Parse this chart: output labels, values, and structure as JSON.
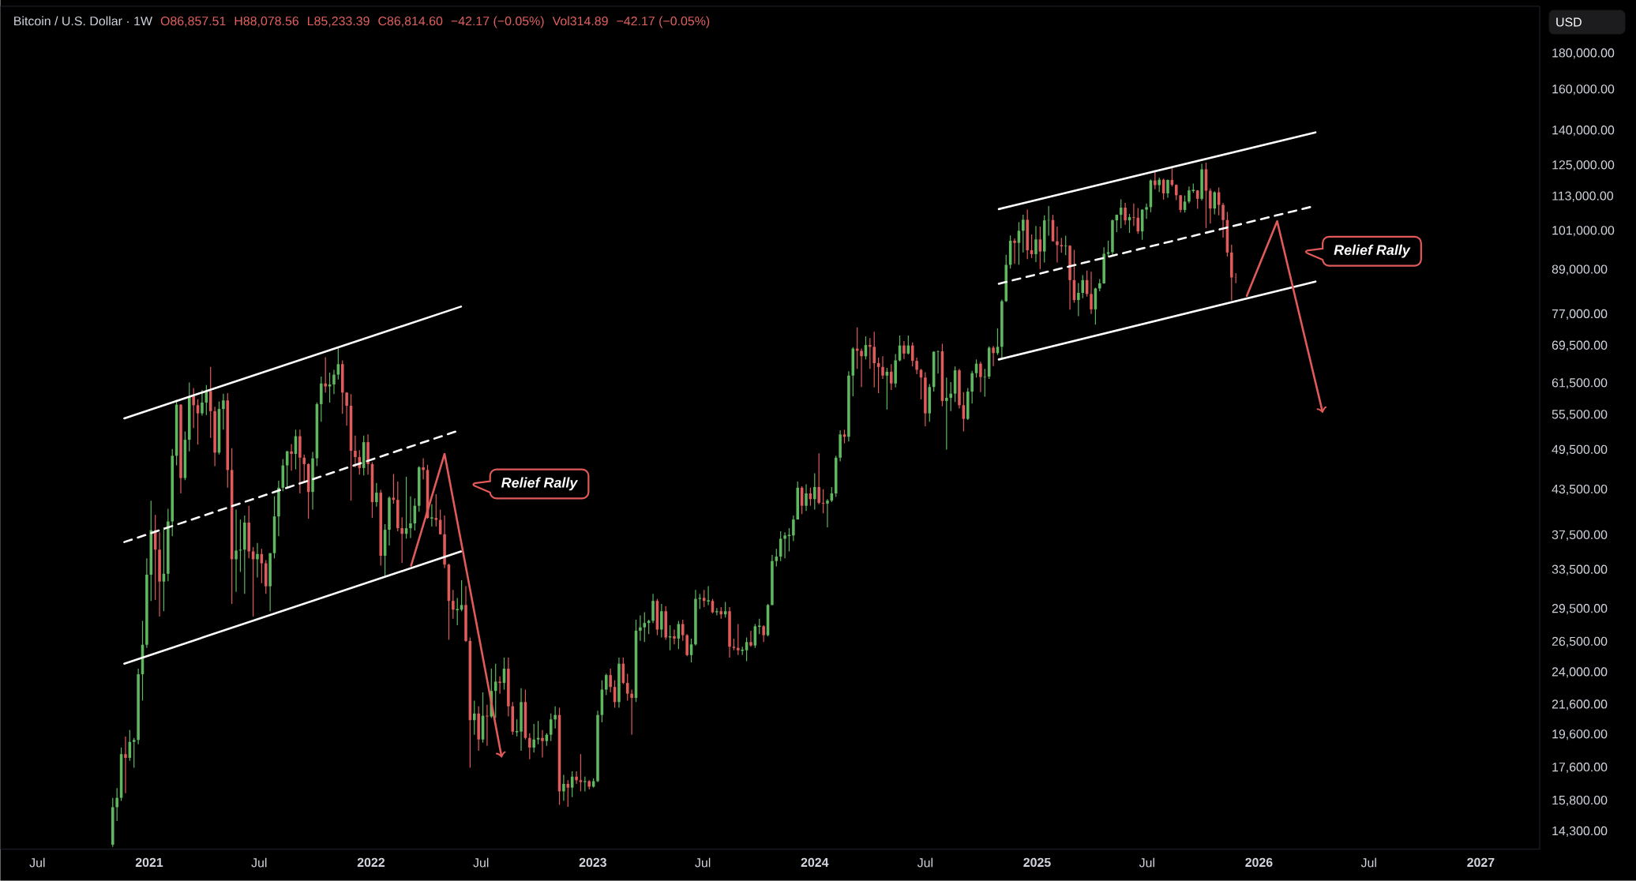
{
  "chart_data": {
    "type": "candlestick",
    "title": "Bitcoin / U.S. Dollar · 1W",
    "log": true,
    "annotations": [
      "O86,857.51",
      "H88,078.56",
      "L85,233.39",
      "C86,814.60",
      "−42.17 (−0.05%)",
      "Vol314.89",
      "−42.17 (−0.05%)",
      "Relief Rally",
      "Relief Rally",
      "USD"
    ],
    "xlim": [
      "2020-05-01",
      "2027-04-08"
    ],
    "xticks": [
      {
        "value": "2020-07-01",
        "label": "Jul"
      },
      {
        "value": "2021-01-01",
        "label": "2021"
      },
      {
        "value": "2021-07-01",
        "label": "Jul"
      },
      {
        "value": "2022-01-01",
        "label": "2022"
      },
      {
        "value": "2022-07-01",
        "label": "Jul"
      },
      {
        "value": "2023-01-01",
        "label": "2023"
      },
      {
        "value": "2023-07-01",
        "label": "Jul"
      },
      {
        "value": "2024-01-01",
        "label": "2024"
      },
      {
        "value": "2024-07-01",
        "label": "Jul"
      },
      {
        "value": "2025-01-01",
        "label": "2025"
      },
      {
        "value": "2025-07-01",
        "label": "Jul"
      },
      {
        "value": "2026-01-01",
        "label": "2026"
      },
      {
        "value": "2026-07-01",
        "label": "Jul"
      },
      {
        "value": "2027-01-01",
        "label": "2027"
      }
    ],
    "ylim": [
      13500,
      210000
    ],
    "yticks": [
      {
        "value": 14300,
        "label": "14,300.00"
      },
      {
        "value": 15800,
        "label": "15,800.00"
      },
      {
        "value": 17600,
        "label": "17,600.00"
      },
      {
        "value": 19600,
        "label": "19,600.00"
      },
      {
        "value": 21600,
        "label": "21,600.00"
      },
      {
        "value": 24000,
        "label": "24,000.00"
      },
      {
        "value": 26500,
        "label": "26,500.00"
      },
      {
        "value": 29500,
        "label": "29,500.00"
      },
      {
        "value": 33500,
        "label": "33,500.00"
      },
      {
        "value": 37500,
        "label": "37,500.00"
      },
      {
        "value": 43500,
        "label": "43,500.00"
      },
      {
        "value": 49500,
        "label": "49,500.00"
      },
      {
        "value": 55500,
        "label": "55,500.00"
      },
      {
        "value": 61500,
        "label": "61,500.00"
      },
      {
        "value": 69500,
        "label": "69,500.00"
      },
      {
        "value": 77000,
        "label": "77,000.00"
      },
      {
        "value": 89000,
        "label": "89,000.00"
      },
      {
        "value": 101000,
        "label": "101,000.00"
      },
      {
        "value": 113000,
        "label": "113,000.00"
      },
      {
        "value": 125000,
        "label": "125,000.00"
      },
      {
        "value": 140000,
        "label": "140,000.00"
      },
      {
        "value": 160000,
        "label": "160,000.00"
      },
      {
        "value": 180000,
        "label": "180,000.00"
      }
    ],
    "series": [
      {
        "type": "line",
        "color": "#ffffff",
        "line_style": "solid",
        "x": [
          "2020-11-21",
          "2022-05-29"
        ],
        "values": [
          54900,
          79000
        ]
      },
      {
        "type": "line",
        "color": "#ffffff",
        "line_style": "solid",
        "x": [
          "2020-11-21",
          "2022-05-29"
        ],
        "values": [
          24700,
          35600
        ]
      },
      {
        "type": "line",
        "color": "#ffffff",
        "line_style": "dashed",
        "x": [
          "2020-11-21",
          "2022-05-29"
        ],
        "values": [
          36700,
          52900
        ]
      },
      {
        "type": "line",
        "color": "#ffffff",
        "line_style": "solid",
        "x": [
          "2024-10-30",
          "2026-04-04"
        ],
        "values": [
          108500,
          139300
        ]
      },
      {
        "type": "line",
        "color": "#ffffff",
        "line_style": "solid",
        "x": [
          "2024-10-30",
          "2026-04-04"
        ],
        "values": [
          66500,
          85700
        ]
      },
      {
        "type": "line",
        "color": "#ffffff",
        "line_style": "dashed",
        "x": [
          "2024-10-30",
          "2026-03-28"
        ],
        "values": [
          85100,
          109300
        ]
      },
      {
        "type": "line",
        "color": "#e05a5a",
        "line_style": "solid",
        "x": [
          "2022-03-08",
          "2022-05-02",
          "2022-08-04"
        ],
        "values": [
          34000,
          48900,
          18200
        ]
      },
      {
        "type": "line",
        "color": "#e05a5a",
        "line_style": "solid",
        "x": [
          "2025-12-12",
          "2026-01-31",
          "2026-04-16"
        ],
        "values": [
          81800,
          104300,
          55900
        ]
      }
    ],
    "x": [
      "2020-11-02",
      "2020-11-09",
      "2020-11-16",
      "2020-11-23",
      "2020-11-30",
      "2020-12-07",
      "2020-12-14",
      "2020-12-21",
      "2020-12-28",
      "2021-01-04",
      "2021-01-11",
      "2021-01-18",
      "2021-01-25",
      "2021-02-01",
      "2021-02-08",
      "2021-02-15",
      "2021-02-22",
      "2021-03-01",
      "2021-03-08",
      "2021-03-15",
      "2021-03-22",
      "2021-03-29",
      "2021-04-05",
      "2021-04-12",
      "2021-04-19",
      "2021-04-26",
      "2021-05-03",
      "2021-05-10",
      "2021-05-17",
      "2021-05-24",
      "2021-05-31",
      "2021-06-07",
      "2021-06-14",
      "2021-06-21",
      "2021-06-28",
      "2021-07-05",
      "2021-07-12",
      "2021-07-19",
      "2021-07-26",
      "2021-08-02",
      "2021-08-09",
      "2021-08-16",
      "2021-08-23",
      "2021-08-30",
      "2021-09-06",
      "2021-09-13",
      "2021-09-20",
      "2021-09-27",
      "2021-10-04",
      "2021-10-11",
      "2021-10-18",
      "2021-10-25",
      "2021-11-01",
      "2021-11-08",
      "2021-11-15",
      "2021-11-22",
      "2021-11-29",
      "2021-12-06",
      "2021-12-13",
      "2021-12-20",
      "2021-12-27",
      "2022-01-03",
      "2022-01-10",
      "2022-01-17",
      "2022-01-24",
      "2022-01-31",
      "2022-02-07",
      "2022-02-14",
      "2022-02-21",
      "2022-02-28",
      "2022-03-07",
      "2022-03-14",
      "2022-03-21",
      "2022-03-28",
      "2022-04-04",
      "2022-04-11",
      "2022-04-18",
      "2022-04-25",
      "2022-05-02",
      "2022-05-09",
      "2022-05-16",
      "2022-05-23",
      "2022-05-30",
      "2022-06-06",
      "2022-06-13",
      "2022-06-20",
      "2022-06-27",
      "2022-07-04",
      "2022-07-11",
      "2022-07-18",
      "2022-07-25",
      "2022-08-01",
      "2022-08-08",
      "2022-08-15",
      "2022-08-22",
      "2022-08-29",
      "2022-09-05",
      "2022-09-12",
      "2022-09-19",
      "2022-09-26",
      "2022-10-03",
      "2022-10-10",
      "2022-10-17",
      "2022-10-24",
      "2022-10-31",
      "2022-11-07",
      "2022-11-14",
      "2022-11-21",
      "2022-11-28",
      "2022-12-05",
      "2022-12-12",
      "2022-12-19",
      "2022-12-26",
      "2023-01-02",
      "2023-01-09",
      "2023-01-16",
      "2023-01-23",
      "2023-01-30",
      "2023-02-06",
      "2023-02-13",
      "2023-02-20",
      "2023-02-27",
      "2023-03-06",
      "2023-03-13",
      "2023-03-20",
      "2023-03-27",
      "2023-04-03",
      "2023-04-10",
      "2023-04-17",
      "2023-04-24",
      "2023-05-01",
      "2023-05-08",
      "2023-05-15",
      "2023-05-22",
      "2023-05-29",
      "2023-06-05",
      "2023-06-12",
      "2023-06-19",
      "2023-06-26",
      "2023-07-03",
      "2023-07-10",
      "2023-07-17",
      "2023-07-24",
      "2023-07-31",
      "2023-08-07",
      "2023-08-14",
      "2023-08-21",
      "2023-08-28",
      "2023-09-04",
      "2023-09-11",
      "2023-09-18",
      "2023-09-25",
      "2023-10-02",
      "2023-10-09",
      "2023-10-16",
      "2023-10-23",
      "2023-10-30",
      "2023-11-06",
      "2023-11-13",
      "2023-11-20",
      "2023-11-27",
      "2023-12-04",
      "2023-12-11",
      "2023-12-18",
      "2023-12-25",
      "2024-01-01",
      "2024-01-08",
      "2024-01-15",
      "2024-01-22",
      "2024-01-29",
      "2024-02-05",
      "2024-02-12",
      "2024-02-19",
      "2024-02-26",
      "2024-03-04",
      "2024-03-11",
      "2024-03-18",
      "2024-03-25",
      "2024-04-01",
      "2024-04-08",
      "2024-04-15",
      "2024-04-22",
      "2024-04-29",
      "2024-05-06",
      "2024-05-13",
      "2024-05-20",
      "2024-05-27",
      "2024-06-03",
      "2024-06-10",
      "2024-06-17",
      "2024-06-24",
      "2024-07-01",
      "2024-07-08",
      "2024-07-15",
      "2024-07-22",
      "2024-07-29",
      "2024-08-05",
      "2024-08-12",
      "2024-08-19",
      "2024-08-26",
      "2024-09-02",
      "2024-09-09",
      "2024-09-16",
      "2024-09-23",
      "2024-09-30",
      "2024-10-07",
      "2024-10-14",
      "2024-10-21",
      "2024-10-28",
      "2024-11-04",
      "2024-11-11",
      "2024-11-18",
      "2024-11-25",
      "2024-12-02",
      "2024-12-09",
      "2024-12-16",
      "2024-12-23",
      "2024-12-30",
      "2025-01-06",
      "2025-01-13",
      "2025-01-20",
      "2025-01-27",
      "2025-02-03",
      "2025-02-10",
      "2025-02-17",
      "2025-02-24",
      "2025-03-03",
      "2025-03-10",
      "2025-03-17",
      "2025-03-24",
      "2025-03-31",
      "2025-04-07",
      "2025-04-14",
      "2025-04-21",
      "2025-04-28",
      "2025-05-05",
      "2025-05-12",
      "2025-05-19",
      "2025-05-26",
      "2025-06-02",
      "2025-06-09",
      "2025-06-16",
      "2025-06-23",
      "2025-06-30",
      "2025-07-07",
      "2025-07-14",
      "2025-07-21",
      "2025-07-28",
      "2025-08-04",
      "2025-08-11",
      "2025-08-18",
      "2025-08-25",
      "2025-09-01",
      "2025-09-08",
      "2025-09-15",
      "2025-09-22",
      "2025-09-29",
      "2025-10-06",
      "2025-10-13",
      "2025-10-20",
      "2025-10-27",
      "2025-11-03",
      "2025-11-10",
      "2025-11-17",
      "2025-11-24"
    ],
    "ohlc": [
      [
        13700,
        15960,
        13600,
        15480
      ],
      [
        15480,
        16480,
        14800,
        15960
      ],
      [
        15960,
        18800,
        15800,
        18400
      ],
      [
        18400,
        19480,
        16200,
        18180
      ],
      [
        18180,
        19900,
        18000,
        19150
      ],
      [
        19150,
        19400,
        17600,
        19270
      ],
      [
        19270,
        24300,
        19000,
        23860
      ],
      [
        23860,
        28400,
        21900,
        26270
      ],
      [
        26270,
        34800,
        26000,
        33000
      ],
      [
        33000,
        42000,
        30300,
        38150
      ],
      [
        38150,
        40100,
        30400,
        35800
      ],
      [
        35800,
        37900,
        28800,
        32270
      ],
      [
        32270,
        38500,
        29300,
        33100
      ],
      [
        33100,
        40900,
        32300,
        39250
      ],
      [
        39250,
        49700,
        37400,
        48600
      ],
      [
        48600,
        58300,
        47100,
        57400
      ],
      [
        57400,
        57500,
        43000,
        45200
      ],
      [
        45200,
        52600,
        44900,
        51200
      ],
      [
        51200,
        61700,
        49300,
        59000
      ],
      [
        59000,
        60600,
        53200,
        57300
      ],
      [
        57300,
        58400,
        50400,
        55800
      ],
      [
        55800,
        60200,
        55400,
        57800
      ],
      [
        57800,
        61200,
        55500,
        60000
      ],
      [
        60000,
        64900,
        51500,
        56200
      ],
      [
        56200,
        57000,
        47000,
        49100
      ],
      [
        49100,
        58000,
        48800,
        56600
      ],
      [
        56600,
        59500,
        52900,
        58200
      ],
      [
        58200,
        59600,
        43800,
        46400
      ],
      [
        46400,
        49800,
        30000,
        34700
      ],
      [
        34700,
        40800,
        31200,
        35700
      ],
      [
        35700,
        39500,
        33300,
        35800
      ],
      [
        35800,
        40000,
        31000,
        39100
      ],
      [
        39100,
        41300,
        34800,
        35600
      ],
      [
        35600,
        36100,
        28800,
        34700
      ],
      [
        34700,
        36600,
        32700,
        35300
      ],
      [
        35300,
        35900,
        32100,
        34250
      ],
      [
        34250,
        34600,
        31000,
        31780
      ],
      [
        31780,
        35400,
        29300,
        35400
      ],
      [
        35400,
        42600,
        34800,
        39900
      ],
      [
        39900,
        44800,
        37400,
        43800
      ],
      [
        43800,
        48100,
        43300,
        47100
      ],
      [
        47100,
        49400,
        43900,
        49300
      ],
      [
        49300,
        50500,
        46300,
        48900
      ],
      [
        48900,
        52900,
        46500,
        51800
      ],
      [
        51800,
        52900,
        43000,
        48300
      ],
      [
        48300,
        48800,
        44700,
        47300
      ],
      [
        47300,
        47400,
        39600,
        43200
      ],
      [
        43200,
        49200,
        40800,
        48200
      ],
      [
        48200,
        57800,
        47000,
        57500
      ],
      [
        57500,
        62900,
        54300,
        61500
      ],
      [
        61500,
        67000,
        59700,
        60900
      ],
      [
        60900,
        63700,
        57800,
        61300
      ],
      [
        61300,
        64300,
        59400,
        63300
      ],
      [
        63300,
        69000,
        62300,
        65500
      ],
      [
        65500,
        66300,
        55700,
        59700
      ],
      [
        59700,
        59800,
        53600,
        57200
      ],
      [
        57200,
        59400,
        42000,
        49400
      ],
      [
        49400,
        51900,
        46800,
        48400
      ],
      [
        48400,
        49500,
        45700,
        46700
      ],
      [
        46700,
        51900,
        45600,
        50800
      ],
      [
        50800,
        52100,
        45700,
        47300
      ],
      [
        47300,
        47600,
        39700,
        41800
      ],
      [
        41800,
        44500,
        41200,
        43100
      ],
      [
        43100,
        43500,
        34000,
        35100
      ],
      [
        35100,
        38900,
        32900,
        38200
      ],
      [
        38200,
        42600,
        36300,
        42400
      ],
      [
        42400,
        45800,
        41600,
        42100
      ],
      [
        42100,
        44700,
        38000,
        38400
      ],
      [
        38400,
        39800,
        34300,
        37700
      ],
      [
        37700,
        45400,
        37100,
        38400
      ],
      [
        38400,
        42600,
        37200,
        39000
      ],
      [
        39000,
        42300,
        38100,
        41300
      ],
      [
        41300,
        47000,
        40500,
        46800
      ],
      [
        46800,
        48200,
        45000,
        46400
      ],
      [
        46400,
        47200,
        39600,
        39700
      ],
      [
        39700,
        41500,
        38600,
        39700
      ],
      [
        39700,
        42900,
        38600,
        39450
      ],
      [
        39450,
        40800,
        37600,
        37650
      ],
      [
        37650,
        40000,
        33700,
        34100
      ],
      [
        34100,
        34200,
        26700,
        30300
      ],
      [
        30300,
        31400,
        28600,
        29450
      ],
      [
        29450,
        30600,
        28000,
        29450
      ],
      [
        29450,
        32400,
        29300,
        29900
      ],
      [
        29900,
        31800,
        26500,
        26600
      ],
      [
        26600,
        26900,
        17600,
        20550
      ],
      [
        20550,
        21900,
        19600,
        21000
      ],
      [
        21000,
        21500,
        18600,
        19300
      ],
      [
        19300,
        22500,
        19100,
        20850
      ],
      [
        20850,
        21600,
        18900,
        20800
      ],
      [
        20800,
        24300,
        20700,
        22600
      ],
      [
        22600,
        24700,
        20700,
        23300
      ],
      [
        23300,
        23700,
        22400,
        23200
      ],
      [
        23200,
        25200,
        22700,
        24300
      ],
      [
        24300,
        25200,
        20800,
        21500
      ],
      [
        21500,
        21800,
        19600,
        19800
      ],
      [
        19800,
        20600,
        19500,
        19800
      ],
      [
        19800,
        22800,
        18600,
        21800
      ],
      [
        21800,
        22700,
        19300,
        19400
      ],
      [
        19400,
        19700,
        18100,
        18800
      ],
      [
        18800,
        20300,
        18500,
        19300
      ],
      [
        19300,
        20500,
        19000,
        19400
      ],
      [
        19400,
        19900,
        18200,
        19200
      ],
      [
        19200,
        19700,
        18900,
        19600
      ],
      [
        19600,
        21000,
        19200,
        20600
      ],
      [
        20600,
        21500,
        20000,
        20900
      ],
      [
        20900,
        21400,
        15600,
        16300
      ],
      [
        16300,
        17200,
        15800,
        16700
      ],
      [
        16700,
        16900,
        15500,
        16500
      ],
      [
        16500,
        17400,
        16000,
        17100
      ],
      [
        17100,
        17400,
        16700,
        16900
      ],
      [
        16900,
        18400,
        16300,
        16800
      ],
      [
        16800,
        17100,
        16300,
        16850
      ],
      [
        16850,
        16900,
        16400,
        16550
      ],
      [
        16550,
        17000,
        16500,
        16850
      ],
      [
        16850,
        21200,
        16800,
        20900
      ],
      [
        20900,
        23400,
        20400,
        22700
      ],
      [
        22700,
        23900,
        22300,
        23800
      ],
      [
        23800,
        24300,
        22500,
        22900
      ],
      [
        22900,
        23400,
        21400,
        21800
      ],
      [
        21800,
        25200,
        21400,
        24700
      ],
      [
        24700,
        25200,
        23100,
        23200
      ],
      [
        23200,
        23900,
        21900,
        22400
      ],
      [
        22400,
        22700,
        19600,
        22100
      ],
      [
        22100,
        28500,
        21800,
        27500
      ],
      [
        27500,
        28900,
        26600,
        27800
      ],
      [
        27800,
        29200,
        26500,
        28200
      ],
      [
        28200,
        28500,
        27200,
        28400
      ],
      [
        28400,
        31000,
        28200,
        30300
      ],
      [
        30300,
        30500,
        27100,
        27600
      ],
      [
        27600,
        30000,
        26900,
        29300
      ],
      [
        29300,
        29800,
        26700,
        26900
      ],
      [
        26900,
        28000,
        25800,
        27000
      ],
      [
        27000,
        27600,
        26300,
        26800
      ],
      [
        26800,
        28400,
        25900,
        28100
      ],
      [
        28100,
        28500,
        26600,
        27100
      ],
      [
        27100,
        27200,
        25300,
        25400
      ],
      [
        25400,
        26800,
        24800,
        26300
      ],
      [
        26300,
        31400,
        26200,
        30500
      ],
      [
        30500,
        31000,
        29500,
        30600
      ],
      [
        30600,
        31400,
        29700,
        30300
      ],
      [
        30300,
        31800,
        29900,
        30300
      ],
      [
        30300,
        30500,
        29100,
        29200
      ],
      [
        29200,
        29600,
        28900,
        29300
      ],
      [
        29300,
        29700,
        28600,
        29000
      ],
      [
        29000,
        30200,
        28700,
        29300
      ],
      [
        29300,
        29700,
        25200,
        26100
      ],
      [
        26100,
        26800,
        25800,
        26000
      ],
      [
        26000,
        28100,
        25400,
        25800
      ],
      [
        25800,
        26100,
        25400,
        25800
      ],
      [
        25800,
        26900,
        24900,
        26500
      ],
      [
        26500,
        27500,
        26100,
        26200
      ],
      [
        26200,
        28100,
        26000,
        27900
      ],
      [
        27900,
        28600,
        27200,
        27900
      ],
      [
        27900,
        28000,
        26500,
        27100
      ],
      [
        27100,
        30000,
        27000,
        29900
      ],
      [
        29900,
        35200,
        29900,
        34500
      ],
      [
        34500,
        35900,
        33900,
        35000
      ],
      [
        35000,
        38000,
        34500,
        37100
      ],
      [
        37100,
        37900,
        34800,
        37500
      ],
      [
        37500,
        38400,
        35600,
        37500
      ],
      [
        37500,
        40000,
        36800,
        39500
      ],
      [
        39500,
        44700,
        39500,
        43800
      ],
      [
        43800,
        44000,
        40200,
        41300
      ],
      [
        41300,
        44300,
        40600,
        43000
      ],
      [
        43000,
        43800,
        41300,
        42200
      ],
      [
        42200,
        45900,
        40800,
        43900
      ],
      [
        43900,
        49000,
        41500,
        41700
      ],
      [
        41700,
        43600,
        40300,
        41600
      ],
      [
        41600,
        42200,
        38500,
        42000
      ],
      [
        42000,
        43900,
        41800,
        43000
      ],
      [
        43000,
        48600,
        42500,
        48300
      ],
      [
        48300,
        52800,
        47700,
        52100
      ],
      [
        52100,
        52900,
        50600,
        51700
      ],
      [
        51700,
        64000,
        50900,
        63100
      ],
      [
        63100,
        69200,
        59000,
        68900
      ],
      [
        68900,
        73800,
        64500,
        68400
      ],
      [
        68400,
        68900,
        60800,
        67200
      ],
      [
        67200,
        71700,
        66500,
        69700
      ],
      [
        69700,
        71300,
        64500,
        69300
      ],
      [
        69300,
        72800,
        60700,
        65700
      ],
      [
        65700,
        66900,
        59600,
        64900
      ],
      [
        64900,
        67200,
        62400,
        63100
      ],
      [
        63100,
        64700,
        56500,
        63900
      ],
      [
        63900,
        65500,
        60200,
        61500
      ],
      [
        61500,
        67700,
        60700,
        66300
      ],
      [
        66300,
        71900,
        66100,
        69600
      ],
      [
        69600,
        70600,
        66600,
        67800
      ],
      [
        67800,
        71900,
        67600,
        69600
      ],
      [
        69600,
        70300,
        65000,
        66200
      ],
      [
        66200,
        66900,
        63400,
        64300
      ],
      [
        64300,
        64500,
        58400,
        62700
      ],
      [
        62700,
        63800,
        53500,
        55800
      ],
      [
        55800,
        61400,
        54300,
        60800
      ],
      [
        60800,
        68300,
        59900,
        68200
      ],
      [
        68200,
        68500,
        63500,
        68300
      ],
      [
        68300,
        70000,
        57100,
        58100
      ],
      [
        58100,
        62700,
        49600,
        58700
      ],
      [
        58700,
        61800,
        56200,
        59500
      ],
      [
        59500,
        65000,
        57900,
        64200
      ],
      [
        64200,
        64500,
        56700,
        57300
      ],
      [
        57300,
        59800,
        52600,
        54800
      ],
      [
        54800,
        60600,
        54600,
        59900
      ],
      [
        59900,
        64100,
        57600,
        63600
      ],
      [
        63600,
        66500,
        62700,
        65600
      ],
      [
        65600,
        66000,
        59800,
        62800
      ],
      [
        62800,
        64500,
        58900,
        62900
      ],
      [
        62900,
        69400,
        62400,
        69100
      ],
      [
        69100,
        69500,
        65100,
        67900
      ],
      [
        67900,
        73600,
        67500,
        69300
      ],
      [
        69300,
        80800,
        66800,
        80400
      ],
      [
        80400,
        93500,
        80200,
        90500
      ],
      [
        90500,
        99600,
        89400,
        97900
      ],
      [
        97900,
        98600,
        90800,
        97200
      ],
      [
        97200,
        104000,
        90500,
        101100
      ],
      [
        101100,
        106500,
        94200,
        104800
      ],
      [
        104800,
        108300,
        92200,
        94900
      ],
      [
        94900,
        99900,
        92500,
        93700
      ],
      [
        93700,
        102700,
        91300,
        98300
      ],
      [
        98300,
        102500,
        89300,
        94500
      ],
      [
        94500,
        106300,
        91200,
        104600
      ],
      [
        104600,
        109600,
        99500,
        104700
      ],
      [
        104700,
        106500,
        97700,
        97700
      ],
      [
        97700,
        102500,
        91200,
        96500
      ],
      [
        96500,
        98800,
        94100,
        96100
      ],
      [
        96100,
        99500,
        93400,
        96300
      ],
      [
        96300,
        96500,
        78200,
        86100
      ],
      [
        86100,
        95000,
        80000,
        80700
      ],
      [
        80700,
        85300,
        76600,
        82600
      ],
      [
        82600,
        87500,
        81200,
        86100
      ],
      [
        86100,
        88800,
        81600,
        82300
      ],
      [
        82300,
        88500,
        77100,
        78300
      ],
      [
        78300,
        84000,
        74500,
        83800
      ],
      [
        83800,
        86400,
        83000,
        85200
      ],
      [
        85200,
        95800,
        85100,
        93800
      ],
      [
        93800,
        97900,
        92800,
        94300
      ],
      [
        94300,
        104900,
        93400,
        104600
      ],
      [
        104600,
        106600,
        100700,
        106500
      ],
      [
        106500,
        112000,
        102000,
        109000
      ],
      [
        109000,
        110700,
        103100,
        104600
      ],
      [
        104600,
        106800,
        100400,
        105700
      ],
      [
        105700,
        110500,
        102700,
        105500
      ],
      [
        105500,
        108900,
        100100,
        100900
      ],
      [
        100900,
        108500,
        98200,
        108300
      ],
      [
        108300,
        110500,
        105100,
        109200
      ],
      [
        109200,
        119500,
        107400,
        119100
      ],
      [
        119100,
        123200,
        115700,
        117300
      ],
      [
        117300,
        120200,
        114700,
        119400
      ],
      [
        119400,
        119800,
        111900,
        114200
      ],
      [
        114200,
        119400,
        112600,
        119300
      ],
      [
        119300,
        124500,
        116800,
        117400
      ],
      [
        117400,
        117600,
        111700,
        113500
      ],
      [
        113500,
        113600,
        107300,
        108200
      ],
      [
        108200,
        113400,
        107300,
        111200
      ],
      [
        111200,
        116800,
        110600,
        115300
      ],
      [
        115300,
        117900,
        114400,
        115300
      ],
      [
        115300,
        115400,
        108600,
        112200
      ],
      [
        112200,
        125700,
        111600,
        123500
      ],
      [
        123500,
        126200,
        102000,
        115200
      ],
      [
        115200,
        116000,
        103500,
        108700
      ],
      [
        108700,
        115000,
        106700,
        114600
      ],
      [
        114600,
        116400,
        106300,
        110000
      ],
      [
        110000,
        110700,
        98900,
        104700
      ],
      [
        104700,
        107500,
        93000,
        94200
      ],
      [
        94200,
        96600,
        80600,
        86857.51
      ],
      [
        86857.51,
        88078.56,
        85233.39,
        86814.6
      ]
    ]
  }
}
